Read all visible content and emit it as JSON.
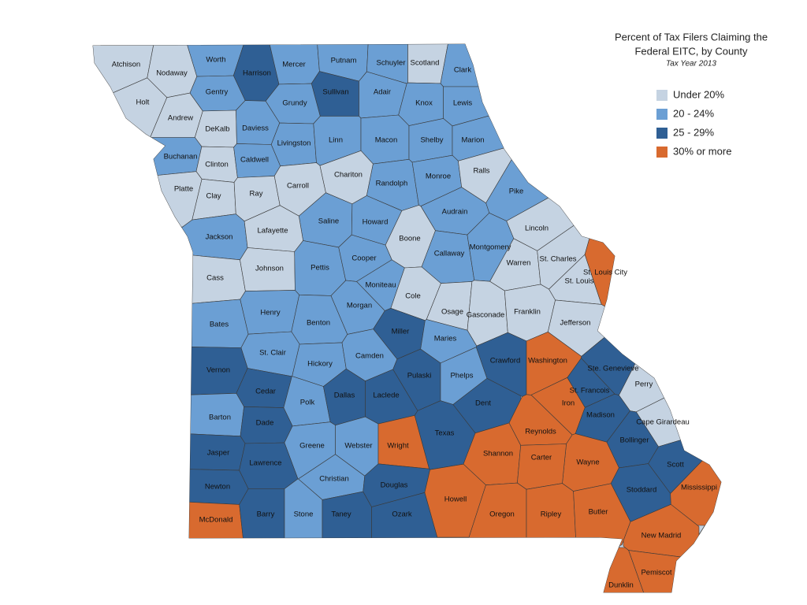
{
  "title_lines": [
    "Percent of Tax Filers Claiming the",
    "Federal EITC, by County"
  ],
  "subtitle": "Tax Year 2013",
  "legend": {
    "items": [
      {
        "label": "Under 20%",
        "color": "#c5d3e2"
      },
      {
        "label": "20 - 24%",
        "color": "#6b9fd4"
      },
      {
        "label": "25 - 29%",
        "color": "#2f5f94"
      },
      {
        "label": "30% or more",
        "color": "#d86a2f"
      }
    ]
  },
  "counties": [
    {
      "name": "Atchison",
      "category": 0
    },
    {
      "name": "Nodaway",
      "category": 0
    },
    {
      "name": "Worth",
      "category": 1
    },
    {
      "name": "Harrison",
      "category": 2
    },
    {
      "name": "Mercer",
      "category": 1
    },
    {
      "name": "Putnam",
      "category": 1
    },
    {
      "name": "Schuyler",
      "category": 1
    },
    {
      "name": "Scotland",
      "category": 0
    },
    {
      "name": "Clark",
      "category": 1
    },
    {
      "name": "Holt",
      "category": 0
    },
    {
      "name": "Andrew",
      "category": 0
    },
    {
      "name": "Gentry",
      "category": 1
    },
    {
      "name": "Sullivan",
      "category": 2
    },
    {
      "name": "Grundy",
      "category": 1
    },
    {
      "name": "Adair",
      "category": 1
    },
    {
      "name": "Knox",
      "category": 1
    },
    {
      "name": "Lewis",
      "category": 1
    },
    {
      "name": "DeKalb",
      "category": 0
    },
    {
      "name": "Daviess",
      "category": 1
    },
    {
      "name": "Livingston",
      "category": 1
    },
    {
      "name": "Linn",
      "category": 1
    },
    {
      "name": "Macon",
      "category": 1
    },
    {
      "name": "Shelby",
      "category": 1
    },
    {
      "name": "Marion",
      "category": 1
    },
    {
      "name": "Buchanan",
      "category": 1
    },
    {
      "name": "Clinton",
      "category": 0
    },
    {
      "name": "Caldwell",
      "category": 1
    },
    {
      "name": "Chariton",
      "category": 0
    },
    {
      "name": "Randolph",
      "category": 1
    },
    {
      "name": "Monroe",
      "category": 1
    },
    {
      "name": "Ralls",
      "category": 0
    },
    {
      "name": "Platte",
      "category": 0
    },
    {
      "name": "Clay",
      "category": 0
    },
    {
      "name": "Ray",
      "category": 0
    },
    {
      "name": "Carroll",
      "category": 0
    },
    {
      "name": "Pike",
      "category": 1
    },
    {
      "name": "Saline",
      "category": 1
    },
    {
      "name": "Howard",
      "category": 1
    },
    {
      "name": "Boone",
      "category": 0
    },
    {
      "name": "Audrain",
      "category": 1
    },
    {
      "name": "Lincoln",
      "category": 0
    },
    {
      "name": "Jackson",
      "category": 1
    },
    {
      "name": "Lafayette",
      "category": 0
    },
    {
      "name": "Callaway",
      "category": 1
    },
    {
      "name": "Montgomery",
      "category": 1
    },
    {
      "name": "Warren",
      "category": 0
    },
    {
      "name": "St. Charles",
      "category": 0
    },
    {
      "name": "St. Louis City",
      "category": 3
    },
    {
      "name": "Cass",
      "category": 0
    },
    {
      "name": "Johnson",
      "category": 0
    },
    {
      "name": "Pettis",
      "category": 1
    },
    {
      "name": "Cooper",
      "category": 1
    },
    {
      "name": "Moniteau",
      "category": 1
    },
    {
      "name": "Cole",
      "category": 0
    },
    {
      "name": "St. Louis",
      "category": 0
    },
    {
      "name": "Osage",
      "category": 0
    },
    {
      "name": "Gasconade",
      "category": 0
    },
    {
      "name": "Franklin",
      "category": 0
    },
    {
      "name": "Jefferson",
      "category": 0
    },
    {
      "name": "Bates",
      "category": 1
    },
    {
      "name": "Henry",
      "category": 1
    },
    {
      "name": "Benton",
      "category": 1
    },
    {
      "name": "Morgan",
      "category": 1
    },
    {
      "name": "Miller",
      "category": 2
    },
    {
      "name": "Maries",
      "category": 1
    },
    {
      "name": "St. Clair",
      "category": 1
    },
    {
      "name": "Hickory",
      "category": 1
    },
    {
      "name": "Camden",
      "category": 1
    },
    {
      "name": "Crawford",
      "category": 2
    },
    {
      "name": "Washington",
      "category": 3
    },
    {
      "name": "Ste. Genevieve",
      "category": 2
    },
    {
      "name": "Perry",
      "category": 0
    },
    {
      "name": "Vernon",
      "category": 2
    },
    {
      "name": "Cedar",
      "category": 2
    },
    {
      "name": "Polk",
      "category": 1
    },
    {
      "name": "Dallas",
      "category": 2
    },
    {
      "name": "Laclede",
      "category": 2
    },
    {
      "name": "Pulaski",
      "category": 2
    },
    {
      "name": "Phelps",
      "category": 1
    },
    {
      "name": "Dent",
      "category": 2
    },
    {
      "name": "Iron",
      "category": 3
    },
    {
      "name": "St. Francois",
      "category": 2
    },
    {
      "name": "Madison",
      "category": 2
    },
    {
      "name": "Cape Girardeau",
      "category": 0
    },
    {
      "name": "Barton",
      "category": 1
    },
    {
      "name": "Dade",
      "category": 2
    },
    {
      "name": "Greene",
      "category": 1
    },
    {
      "name": "Webster",
      "category": 1
    },
    {
      "name": "Wright",
      "category": 3
    },
    {
      "name": "Texas",
      "category": 2
    },
    {
      "name": "Reynolds",
      "category": 3
    },
    {
      "name": "Shannon",
      "category": 3
    },
    {
      "name": "Bollinger",
      "category": 2
    },
    {
      "name": "Wayne",
      "category": 3
    },
    {
      "name": "Carter",
      "category": 3
    },
    {
      "name": "Scott",
      "category": 2
    },
    {
      "name": "Jasper",
      "category": 2
    },
    {
      "name": "Lawrence",
      "category": 2
    },
    {
      "name": "Christian",
      "category": 1
    },
    {
      "name": "Douglas",
      "category": 2
    },
    {
      "name": "Howell",
      "category": 3
    },
    {
      "name": "Stoddard",
      "category": 2
    },
    {
      "name": "Mississippi",
      "category": 3
    },
    {
      "name": "Newton",
      "category": 2
    },
    {
      "name": "McDonald",
      "category": 3
    },
    {
      "name": "Barry",
      "category": 2
    },
    {
      "name": "Stone",
      "category": 1
    },
    {
      "name": "Taney",
      "category": 2
    },
    {
      "name": "Ozark",
      "category": 2
    },
    {
      "name": "Oregon",
      "category": 3
    },
    {
      "name": "Ripley",
      "category": 3
    },
    {
      "name": "Butler",
      "category": 3
    },
    {
      "name": "New Madrid",
      "category": 3
    },
    {
      "name": "Pemiscot",
      "category": 3
    },
    {
      "name": "Dunklin",
      "category": 3
    }
  ]
}
